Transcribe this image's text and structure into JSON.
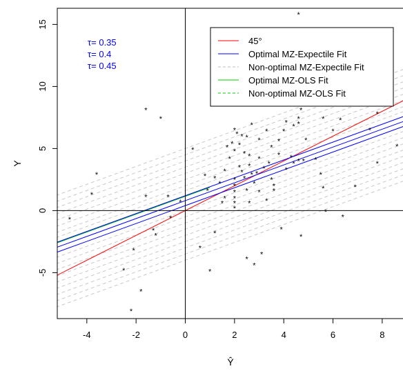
{
  "chart_data": {
    "type": "scatter",
    "xlabel": "Ŷ",
    "ylabel": "Y",
    "xlim": [
      -5.2,
      8.9
    ],
    "ylim": [
      -8.7,
      16.3
    ],
    "xticks": [
      -4,
      -2,
      0,
      2,
      4,
      6,
      8
    ],
    "yticks": [
      -5,
      0,
      5,
      10,
      15
    ],
    "reference_lines": {
      "x": 0,
      "y": 0
    },
    "tau_labels": [
      "τ= 0.35",
      "τ= 0.4",
      "τ= 0.45"
    ],
    "tau_color": "#0000ff",
    "legend_position": "top-right",
    "legend": [
      {
        "label": "45°",
        "color": "#ff0000",
        "dash": false
      },
      {
        "label": "Optimal MZ-Expectile Fit",
        "color": "#0000ff",
        "dash": false
      },
      {
        "label": "Non-optimal MZ-Expectile Fit",
        "color": "#bebebe",
        "dash": true
      },
      {
        "label": "Optimal MZ-OLS Fit",
        "color": "#00cc00",
        "dash": false
      },
      {
        "label": "Non-optimal MZ-OLS Fit",
        "color": "#00cc00",
        "dash": true
      }
    ],
    "series": [
      {
        "name": "45°",
        "color": "#ff0000",
        "dash": false,
        "width": 1,
        "lines": [
          {
            "intercept": 0,
            "slope": 1
          }
        ]
      },
      {
        "name": "Optimal MZ-Expectile Fit",
        "color": "#0000ff",
        "dash": false,
        "width": 1,
        "lines": [
          {
            "intercept": 0.4,
            "slope": 0.72
          },
          {
            "intercept": 0.8,
            "slope": 0.72
          },
          {
            "intercept": 1.2,
            "slope": 0.72
          }
        ]
      },
      {
        "name": "Non-optimal MZ-Expectile Fit",
        "color": "#c8c8c8",
        "dash": true,
        "width": 1,
        "lines": [
          {
            "intercept": -4.0,
            "slope": 0.72
          },
          {
            "intercept": -3.5,
            "slope": 0.72
          },
          {
            "intercept": -3.0,
            "slope": 0.72
          },
          {
            "intercept": -2.5,
            "slope": 0.72
          },
          {
            "intercept": -2.0,
            "slope": 0.72
          },
          {
            "intercept": -1.5,
            "slope": 0.72
          },
          {
            "intercept": -1.0,
            "slope": 0.72
          },
          {
            "intercept": -0.5,
            "slope": 0.72
          },
          {
            "intercept": 0.0,
            "slope": 0.72
          },
          {
            "intercept": 1.6,
            "slope": 0.72
          },
          {
            "intercept": 2.0,
            "slope": 0.72
          },
          {
            "intercept": 2.5,
            "slope": 0.72
          },
          {
            "intercept": 3.0,
            "slope": 0.72
          },
          {
            "intercept": 3.5,
            "slope": 0.72
          },
          {
            "intercept": 4.0,
            "slope": 0.72
          },
          {
            "intercept": 4.5,
            "slope": 0.72
          },
          {
            "intercept": 5.0,
            "slope": 0.72
          }
        ]
      },
      {
        "name": "Optimal MZ-OLS Fit",
        "color": "#00cc00",
        "dash": false,
        "width": 1,
        "lines": [
          {
            "intercept": 1.15,
            "slope": 0.72,
            "x_max": 1.0
          }
        ]
      },
      {
        "name": "Non-optimal MZ-OLS Fit",
        "color": "#00cc00",
        "dash": true,
        "width": 1,
        "lines": []
      }
    ],
    "points": [
      {
        "x": 4.6,
        "y": 15.8
      },
      {
        "x": 7.8,
        "y": 7.8
      },
      {
        "x": 9.2,
        "y": 8.5
      },
      {
        "x": 8.6,
        "y": 5.2
      },
      {
        "x": 7.8,
        "y": 3.8
      },
      {
        "x": 7.5,
        "y": 6.5
      },
      {
        "x": -1.6,
        "y": 8.1
      },
      {
        "x": -1.0,
        "y": 7.4
      },
      {
        "x": -3.6,
        "y": 2.9
      },
      {
        "x": -3.8,
        "y": 1.3
      },
      {
        "x": -1.6,
        "y": 1.1
      },
      {
        "x": -0.7,
        "y": 1.1
      },
      {
        "x": -0.2,
        "y": 0.7
      },
      {
        "x": -0.6,
        "y": -0.6
      },
      {
        "x": -1.3,
        "y": -1.6
      },
      {
        "x": -1.2,
        "y": -2.0
      },
      {
        "x": -2.1,
        "y": -3.2
      },
      {
        "x": -2.5,
        "y": -4.8
      },
      {
        "x": -1.8,
        "y": -6.5
      },
      {
        "x": -2.2,
        "y": -8.1
      },
      {
        "x": -4.7,
        "y": -0.7
      },
      {
        "x": 0.3,
        "y": 4.9
      },
      {
        "x": 0.6,
        "y": -3.0
      },
      {
        "x": 1.0,
        "y": -4.9
      },
      {
        "x": 1.2,
        "y": -1.8
      },
      {
        "x": 1.5,
        "y": 0.6
      },
      {
        "x": 0.9,
        "y": 1.6
      },
      {
        "x": 0.8,
        "y": 2.8
      },
      {
        "x": 1.2,
        "y": 2.6
      },
      {
        "x": 1.4,
        "y": 2.2
      },
      {
        "x": 1.6,
        "y": 3.2
      },
      {
        "x": 1.7,
        "y": 5.1
      },
      {
        "x": 1.8,
        "y": 4.2
      },
      {
        "x": 1.9,
        "y": 5.4
      },
      {
        "x": 2.0,
        "y": 6.5
      },
      {
        "x": 2.0,
        "y": 4.8
      },
      {
        "x": 2.1,
        "y": 6.2
      },
      {
        "x": 2.2,
        "y": 5.3
      },
      {
        "x": 2.3,
        "y": 6.0
      },
      {
        "x": 2.4,
        "y": 4.6
      },
      {
        "x": 2.5,
        "y": 5.9
      },
      {
        "x": 2.6,
        "y": 4.4
      },
      {
        "x": 2.7,
        "y": 6.9
      },
      {
        "x": 2.0,
        "y": 2.5
      },
      {
        "x": 2.0,
        "y": 2.0
      },
      {
        "x": 2.0,
        "y": 1.5
      },
      {
        "x": 2.0,
        "y": 1.0
      },
      {
        "x": 2.0,
        "y": 0.6
      },
      {
        "x": 2.0,
        "y": 0.2
      },
      {
        "x": 1.6,
        "y": 1.0
      },
      {
        "x": 2.2,
        "y": 3.5
      },
      {
        "x": 2.3,
        "y": 3.1
      },
      {
        "x": 2.4,
        "y": 2.6
      },
      {
        "x": 2.5,
        "y": 1.6
      },
      {
        "x": 2.6,
        "y": 3.6
      },
      {
        "x": 2.7,
        "y": 2.9
      },
      {
        "x": 2.8,
        "y": 2.2
      },
      {
        "x": 2.9,
        "y": 3.0
      },
      {
        "x": 3.0,
        "y": 4.2
      },
      {
        "x": 3.2,
        "y": 3.4
      },
      {
        "x": 3.4,
        "y": 3.8
      },
      {
        "x": 3.5,
        "y": 2.5
      },
      {
        "x": 3.6,
        "y": 1.6
      },
      {
        "x": 3.8,
        "y": 4.5
      },
      {
        "x": 3.5,
        "y": 5.1
      },
      {
        "x": 3.0,
        "y": 5.7
      },
      {
        "x": 3.3,
        "y": 6.4
      },
      {
        "x": 4.0,
        "y": 6.4
      },
      {
        "x": 3.8,
        "y": 5.6
      },
      {
        "x": 4.1,
        "y": 7.1
      },
      {
        "x": 4.4,
        "y": 6.8
      },
      {
        "x": 4.6,
        "y": 7.0
      },
      {
        "x": 4.6,
        "y": 7.4
      },
      {
        "x": 4.7,
        "y": 8.1
      },
      {
        "x": 4.3,
        "y": 4.3
      },
      {
        "x": 4.4,
        "y": 3.8
      },
      {
        "x": 4.6,
        "y": 4.0
      },
      {
        "x": 4.8,
        "y": 4.0
      },
      {
        "x": 4.9,
        "y": 5.7
      },
      {
        "x": 5.3,
        "y": 4.1
      },
      {
        "x": 5.5,
        "y": 2.9
      },
      {
        "x": 5.6,
        "y": 1.8
      },
      {
        "x": 5.6,
        "y": 7.4
      },
      {
        "x": 6.0,
        "y": 6.4
      },
      {
        "x": 6.3,
        "y": 7.3
      },
      {
        "x": 5.7,
        "y": -0.1
      },
      {
        "x": 4.7,
        "y": -2.1
      },
      {
        "x": 3.9,
        "y": -1.5
      },
      {
        "x": 3.1,
        "y": -3.5
      },
      {
        "x": 2.8,
        "y": -4.4
      },
      {
        "x": 2.5,
        "y": -3.9
      },
      {
        "x": 2.6,
        "y": 0.6
      },
      {
        "x": 3.3,
        "y": 0.8
      },
      {
        "x": 3.0,
        "y": 1.5
      },
      {
        "x": 3.6,
        "y": 2.0
      },
      {
        "x": 4.1,
        "y": 3.3
      },
      {
        "x": 6.4,
        "y": -0.5
      },
      {
        "x": 6.9,
        "y": 1.9
      }
    ]
  }
}
